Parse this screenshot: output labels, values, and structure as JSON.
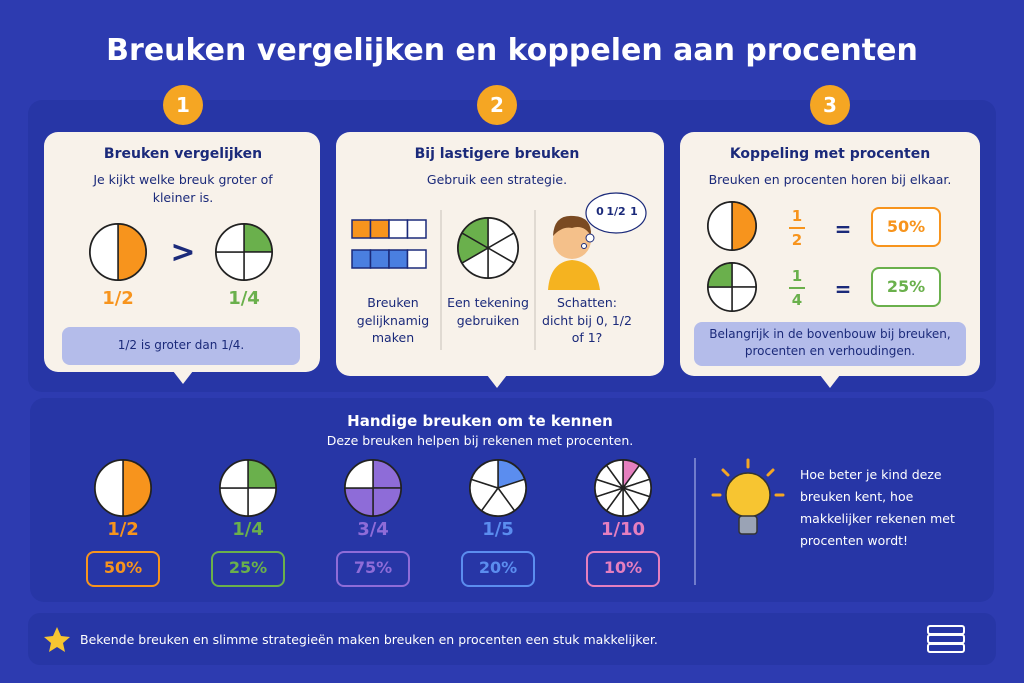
{
  "title": "Breuken vergelijken en koppelen aan procenten",
  "steps": [
    {
      "number": "1",
      "heading": "Breuken vergelijken",
      "text": "Je kijkt welke breuk groter of kleiner is.",
      "left": "1/2",
      "symbol": ">",
      "right": "1/4",
      "note": "1/2 is groter dan 1/4."
    },
    {
      "number": "2",
      "heading": "Bij lastigere breuken",
      "text": "Gebruik een strategie.",
      "strategies": [
        "Breuken gelijknamig maken",
        "Een tekening gebruiken",
        "Schatten: dicht bij 0, 1/2 of 1?"
      ],
      "bubble": [
        "0",
        "1/2",
        "1"
      ]
    },
    {
      "number": "3",
      "heading": "Koppeling met procenten",
      "text": "Breuken en procenten horen bij elkaar.",
      "rows": [
        {
          "numerator": "1",
          "denominator": "2",
          "equals": "=",
          "percent": "50%"
        },
        {
          "numerator": "1",
          "denominator": "4",
          "equals": "=",
          "percent": "25%"
        }
      ],
      "note": "Belangrijk in de bovenbouw bij breuken, procenten en verhoudingen."
    }
  ],
  "handy": {
    "heading": "Handige breuken om te kennen",
    "subtitle": "Deze breuken helpen bij rekenen met procenten.",
    "items": [
      {
        "fraction": "1/2",
        "percent": "50%",
        "color": "#f7941d"
      },
      {
        "fraction": "1/4",
        "percent": "25%",
        "color": "#6ab04c"
      },
      {
        "fraction": "3/4",
        "percent": "75%",
        "color": "#8e6cd8"
      },
      {
        "fraction": "1/5",
        "percent": "20%",
        "color": "#5b8def"
      },
      {
        "fraction": "1/10",
        "percent": "10%",
        "color": "#e57fbf"
      }
    ],
    "tip": "Hoe beter je kind deze breuken kent, hoe makkelijker rekenen met procenten wordt!"
  },
  "footer": "Bekende breuken en slimme strategieën maken breuken en procenten een stuk makkelijker."
}
